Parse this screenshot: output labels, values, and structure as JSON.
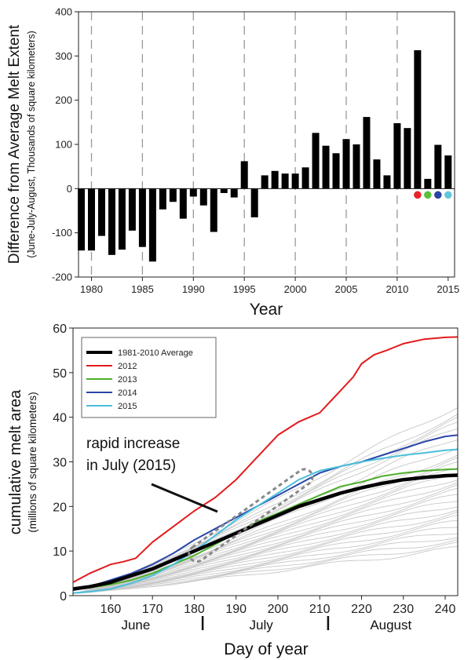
{
  "chart_data": [
    {
      "type": "bar",
      "xlabel": "Year",
      "ylabel": "Difference from Average Melt Extent",
      "ylabel_sub": "(June-July-August, Thousands of square kilometers)",
      "ylim": [
        -200,
        400
      ],
      "yticks": [
        -200,
        -100,
        0,
        100,
        200,
        300,
        400
      ],
      "xticks": [
        1980,
        1985,
        1990,
        1995,
        2000,
        2005,
        2010,
        2015
      ],
      "grid": "vertical dashed at x tick years",
      "categories": [
        1979,
        1980,
        1981,
        1982,
        1983,
        1984,
        1985,
        1986,
        1987,
        1988,
        1989,
        1990,
        1991,
        1992,
        1993,
        1994,
        1995,
        1996,
        1997,
        1998,
        1999,
        2000,
        2001,
        2002,
        2003,
        2004,
        2005,
        2006,
        2007,
        2008,
        2009,
        2010,
        2011,
        2012,
        2013,
        2014,
        2015
      ],
      "values": [
        -140,
        -140,
        -107,
        -150,
        -138,
        -95,
        -132,
        -165,
        -47,
        -30,
        -68,
        -18,
        -38,
        -98,
        -10,
        -20,
        62,
        -65,
        30,
        40,
        34,
        34,
        48,
        126,
        97,
        80,
        112,
        100,
        162,
        66,
        30,
        148,
        137,
        313,
        22,
        99,
        75
      ],
      "bar_color": "#000000",
      "markers": [
        {
          "year": 2012,
          "color": "#e8232a"
        },
        {
          "year": 2013,
          "color": "#5bbf3c"
        },
        {
          "year": 2014,
          "color": "#2b46a0"
        },
        {
          "year": 2015,
          "color": "#5ec8dc"
        }
      ]
    },
    {
      "type": "line",
      "xlabel": "Day of year",
      "ylabel": "cumulative melt area",
      "ylabel_sub": "(millions of square kilometers)",
      "xlim": [
        151,
        243
      ],
      "ylim": [
        0,
        60
      ],
      "xticks": [
        160,
        170,
        180,
        190,
        200,
        210,
        220,
        230,
        240
      ],
      "yticks": [
        0,
        10,
        20,
        30,
        40,
        50,
        60
      ],
      "month_labels": [
        {
          "label": "June",
          "day": 166
        },
        {
          "label": "July",
          "day": 196
        },
        {
          "label": "August",
          "day": 227
        }
      ],
      "month_separators": [
        182,
        212
      ],
      "legend_position": "top-left",
      "annotation": {
        "text": [
          "rapid increase",
          "in July (2015)"
        ],
        "highlight_from": [
          180,
          9
        ],
        "highlight_to": [
          207,
          27
        ]
      },
      "series": [
        {
          "name": "1981-2010 Average",
          "color": "#000000",
          "width": 4.5,
          "x": [
            151,
            155,
            160,
            165,
            170,
            175,
            180,
            185,
            190,
            195,
            200,
            205,
            210,
            215,
            220,
            225,
            230,
            235,
            240,
            243
          ],
          "y": [
            1.5,
            2,
            3,
            4.5,
            6,
            8,
            10,
            12,
            14,
            16,
            18,
            20,
            21.5,
            23,
            24.2,
            25.2,
            26,
            26.5,
            26.9,
            27
          ]
        },
        {
          "name": "2012",
          "color": "#e31a1c",
          "width": 2,
          "x": [
            151,
            155,
            160,
            163,
            166,
            170,
            175,
            180,
            185,
            190,
            195,
            200,
            205,
            210,
            212,
            215,
            218,
            220,
            223,
            226,
            230,
            235,
            240,
            243
          ],
          "y": [
            3,
            5,
            7,
            7.6,
            8.4,
            12,
            15.5,
            19,
            22,
            26,
            31,
            36,
            39,
            41,
            43,
            46,
            49,
            52,
            54,
            55,
            56.5,
            57.5,
            57.9,
            58
          ]
        },
        {
          "name": "2013",
          "color": "#4daf2a",
          "width": 2,
          "x": [
            151,
            155,
            160,
            165,
            170,
            175,
            180,
            185,
            190,
            195,
            200,
            205,
            210,
            215,
            220,
            225,
            230,
            235,
            240,
            243
          ],
          "y": [
            1.5,
            1.8,
            2.5,
            3.5,
            5,
            7,
            9,
            11.5,
            14,
            16.5,
            18.5,
            20.5,
            22.5,
            24.5,
            25.5,
            26.8,
            27.5,
            28,
            28.3,
            28.4
          ]
        },
        {
          "name": "2014",
          "color": "#2a46a8",
          "width": 2,
          "x": [
            151,
            155,
            160,
            165,
            170,
            175,
            180,
            185,
            190,
            195,
            200,
            205,
            210,
            215,
            220,
            225,
            230,
            235,
            240,
            243
          ],
          "y": [
            1.2,
            2,
            3.5,
            5,
            7,
            9.5,
            12.5,
            15,
            17.5,
            20,
            22.5,
            25,
            27.5,
            29,
            30,
            31.5,
            33,
            34.5,
            35.7,
            36
          ]
        },
        {
          "name": "2015",
          "color": "#49bfdc",
          "width": 2,
          "x": [
            151,
            155,
            160,
            165,
            170,
            175,
            180,
            185,
            190,
            195,
            200,
            205,
            210,
            215,
            220,
            225,
            230,
            235,
            240,
            243
          ],
          "y": [
            0.6,
            0.9,
            1.5,
            2.8,
            4.5,
            7,
            10,
            13.5,
            17,
            20,
            23,
            26,
            28,
            29,
            30,
            30.8,
            31.5,
            32,
            32.6,
            32.8
          ]
        }
      ],
      "background_series_color": "#c8c8c8",
      "background_series_finals": [
        42,
        40,
        39,
        38,
        37,
        35,
        33,
        31,
        30,
        29,
        28,
        27,
        26,
        25,
        24,
        23,
        22,
        21,
        20,
        19,
        18,
        17,
        16,
        15,
        14,
        13,
        12,
        11,
        10
      ]
    }
  ]
}
